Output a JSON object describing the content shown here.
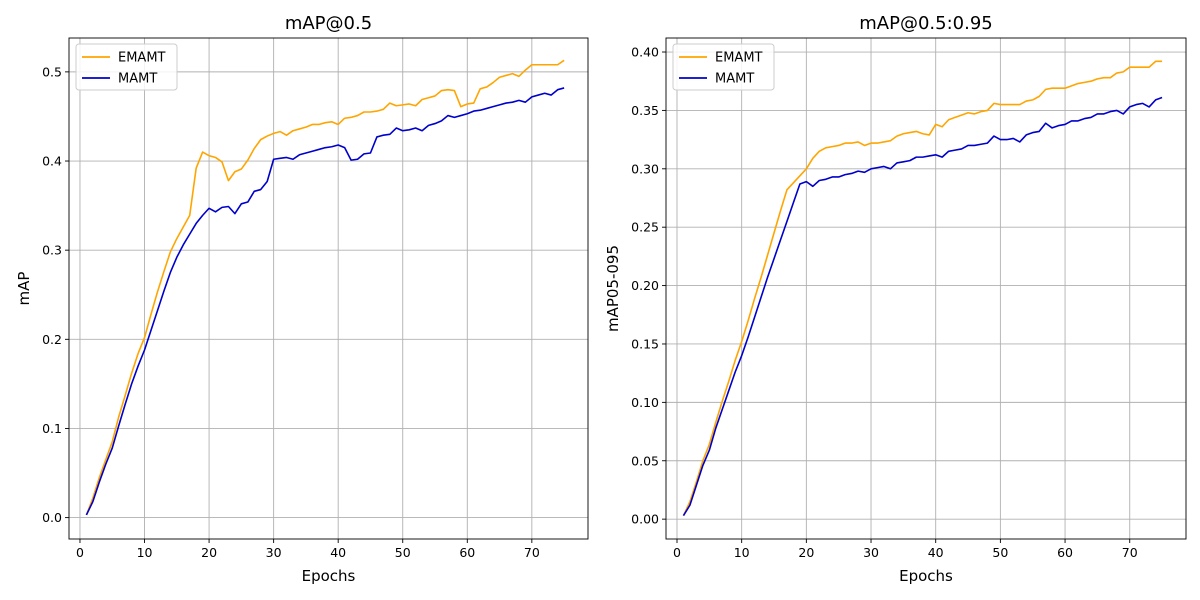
{
  "chart_data": [
    {
      "type": "line",
      "title": "mAP@0.5",
      "xlabel": "Epochs",
      "ylabel": "mAP",
      "xlim": [
        -1.7,
        78.7
      ],
      "ylim": [
        -0.024,
        0.538
      ],
      "xticks": [
        0,
        10,
        20,
        30,
        40,
        50,
        60,
        70
      ],
      "yticks": [
        0.0,
        0.1,
        0.2,
        0.3,
        0.4,
        0.5
      ],
      "ytick_labels": [
        "0.0",
        "0.1",
        "0.2",
        "0.3",
        "0.4",
        "0.5"
      ],
      "grid": true,
      "legend": "top-left",
      "x": [
        1,
        2,
        3,
        4,
        5,
        6,
        7,
        8,
        9,
        10,
        11,
        12,
        13,
        14,
        15,
        16,
        17,
        18,
        19,
        20,
        21,
        22,
        23,
        24,
        25,
        26,
        27,
        28,
        29,
        30,
        31,
        32,
        33,
        34,
        35,
        36,
        37,
        38,
        39,
        40,
        41,
        42,
        43,
        44,
        45,
        46,
        47,
        48,
        49,
        50,
        51,
        52,
        53,
        54,
        55,
        56,
        57,
        58,
        59,
        60,
        61,
        62,
        63,
        64,
        65,
        66,
        67,
        68,
        69,
        70,
        71,
        72,
        73,
        74,
        75
      ],
      "series": [
        {
          "name": "EMAMT",
          "color": "#ffa500",
          "values": [
            0.003,
            0.022,
            0.045,
            0.065,
            0.085,
            0.113,
            0.137,
            0.162,
            0.184,
            0.202,
            0.228,
            0.253,
            0.276,
            0.298,
            0.313,
            0.326,
            0.339,
            0.392,
            0.41,
            0.406,
            0.404,
            0.399,
            0.378,
            0.388,
            0.391,
            0.401,
            0.414,
            0.424,
            0.428,
            0.431,
            0.433,
            0.429,
            0.434,
            0.436,
            0.438,
            0.441,
            0.441,
            0.443,
            0.444,
            0.441,
            0.448,
            0.449,
            0.451,
            0.455,
            0.455,
            0.456,
            0.458,
            0.465,
            0.462,
            0.463,
            0.464,
            0.462,
            0.469,
            0.471,
            0.473,
            0.479,
            0.48,
            0.479,
            0.461,
            0.464,
            0.465,
            0.481,
            0.483,
            0.488,
            0.494,
            0.496,
            0.498,
            0.495,
            0.502,
            0.508,
            0.508,
            0.508,
            0.508,
            0.508,
            0.513
          ]
        },
        {
          "name": "MAMT",
          "color": "#0000cd",
          "values": [
            0.003,
            0.018,
            0.04,
            0.06,
            0.078,
            0.103,
            0.127,
            0.15,
            0.17,
            0.188,
            0.21,
            0.232,
            0.254,
            0.275,
            0.292,
            0.306,
            0.318,
            0.33,
            0.339,
            0.347,
            0.343,
            0.348,
            0.349,
            0.341,
            0.352,
            0.354,
            0.366,
            0.368,
            0.377,
            0.402,
            0.403,
            0.404,
            0.402,
            0.407,
            0.409,
            0.411,
            0.413,
            0.415,
            0.416,
            0.418,
            0.415,
            0.401,
            0.402,
            0.408,
            0.409,
            0.427,
            0.429,
            0.43,
            0.437,
            0.434,
            0.435,
            0.437,
            0.434,
            0.44,
            0.442,
            0.445,
            0.451,
            0.449,
            0.451,
            0.453,
            0.456,
            0.457,
            0.459,
            0.461,
            0.463,
            0.465,
            0.466,
            0.468,
            0.466,
            0.472,
            0.474,
            0.476,
            0.474,
            0.48,
            0.482
          ]
        }
      ]
    },
    {
      "type": "line",
      "title": "mAP@0.5:0.95",
      "xlabel": "Epochs",
      "ylabel": "mAP05-095",
      "xlim": [
        -1.7,
        78.7
      ],
      "ylim": [
        -0.017,
        0.412
      ],
      "xticks": [
        0,
        10,
        20,
        30,
        40,
        50,
        60,
        70
      ],
      "yticks": [
        0.0,
        0.05,
        0.1,
        0.15,
        0.2,
        0.25,
        0.3,
        0.35,
        0.4
      ],
      "ytick_labels": [
        "0.00",
        "0.05",
        "0.10",
        "0.15",
        "0.20",
        "0.25",
        "0.30",
        "0.35",
        "0.40"
      ],
      "grid": true,
      "legend": "top-left",
      "x": [
        1,
        2,
        3,
        4,
        5,
        6,
        7,
        8,
        9,
        10,
        11,
        12,
        13,
        14,
        15,
        16,
        17,
        18,
        19,
        20,
        21,
        22,
        23,
        24,
        25,
        26,
        27,
        28,
        29,
        30,
        31,
        32,
        33,
        34,
        35,
        36,
        37,
        38,
        39,
        40,
        41,
        42,
        43,
        44,
        45,
        46,
        47,
        48,
        49,
        50,
        51,
        52,
        53,
        54,
        55,
        56,
        57,
        58,
        59,
        60,
        61,
        62,
        63,
        64,
        65,
        66,
        67,
        68,
        69,
        70,
        71,
        72,
        73,
        74,
        75
      ],
      "series": [
        {
          "name": "EMAMT",
          "color": "#ffa500",
          "values": [
            0.003,
            0.015,
            0.032,
            0.05,
            0.064,
            0.083,
            0.101,
            0.118,
            0.136,
            0.152,
            0.17,
            0.189,
            0.207,
            0.226,
            0.245,
            0.264,
            0.282,
            0.288,
            0.294,
            0.3,
            0.309,
            0.315,
            0.318,
            0.319,
            0.32,
            0.322,
            0.322,
            0.323,
            0.32,
            0.322,
            0.322,
            0.323,
            0.324,
            0.328,
            0.33,
            0.331,
            0.332,
            0.33,
            0.329,
            0.338,
            0.336,
            0.342,
            0.344,
            0.346,
            0.348,
            0.347,
            0.349,
            0.35,
            0.356,
            0.355,
            0.355,
            0.355,
            0.355,
            0.358,
            0.359,
            0.362,
            0.368,
            0.369,
            0.369,
            0.369,
            0.371,
            0.373,
            0.374,
            0.375,
            0.377,
            0.378,
            0.378,
            0.382,
            0.383,
            0.387,
            0.387,
            0.387,
            0.387,
            0.392,
            0.392
          ]
        },
        {
          "name": "MAMT",
          "color": "#0000cd",
          "values": [
            0.003,
            0.012,
            0.029,
            0.046,
            0.059,
            0.078,
            0.094,
            0.11,
            0.126,
            0.14,
            0.156,
            0.173,
            0.19,
            0.207,
            0.223,
            0.239,
            0.255,
            0.271,
            0.287,
            0.289,
            0.285,
            0.29,
            0.291,
            0.293,
            0.293,
            0.295,
            0.296,
            0.298,
            0.297,
            0.3,
            0.301,
            0.302,
            0.3,
            0.305,
            0.306,
            0.307,
            0.31,
            0.31,
            0.311,
            0.312,
            0.31,
            0.315,
            0.316,
            0.317,
            0.32,
            0.32,
            0.321,
            0.322,
            0.328,
            0.325,
            0.325,
            0.326,
            0.323,
            0.329,
            0.331,
            0.332,
            0.339,
            0.335,
            0.337,
            0.338,
            0.341,
            0.341,
            0.343,
            0.344,
            0.347,
            0.347,
            0.349,
            0.35,
            0.347,
            0.353,
            0.355,
            0.356,
            0.353,
            0.359,
            0.361
          ]
        }
      ]
    }
  ]
}
